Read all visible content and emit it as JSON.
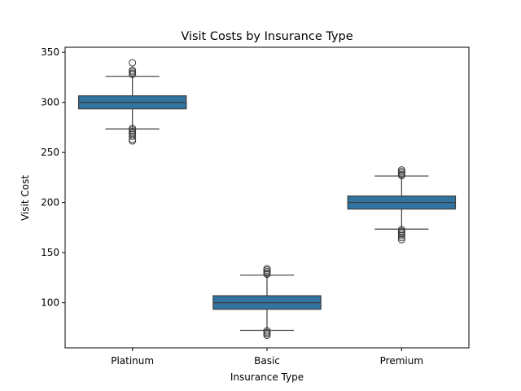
{
  "chart_data": {
    "type": "box",
    "title": "Visit Costs by Insurance Type",
    "xlabel": "Insurance Type",
    "ylabel": "Visit Cost",
    "ylim": [
      55,
      355
    ],
    "yticks": [
      100,
      150,
      200,
      250,
      300,
      350
    ],
    "grid": false,
    "colors": {
      "box": "#3274a1",
      "line": "#3d3d3d",
      "axis": "#000000"
    },
    "categories": [
      "Platinum",
      "Basic",
      "Premium"
    ],
    "boxes": [
      {
        "category": "Platinum",
        "q1": 293.5,
        "median": 300,
        "q3": 306.5,
        "whisker_low": 273.5,
        "whisker_high": 326,
        "outliers": [
          339.5,
          332,
          330.5,
          329,
          328,
          274,
          272.5,
          271,
          269.5,
          268,
          266,
          263,
          261.5
        ]
      },
      {
        "category": "Basic",
        "q1": 93.5,
        "median": 100,
        "q3": 107,
        "whisker_low": 72.5,
        "whisker_high": 127.5,
        "outliers": [
          134,
          132.5,
          131,
          129.5,
          128.5,
          72,
          70.5,
          69,
          67.5
        ]
      },
      {
        "category": "Premium",
        "q1": 193.5,
        "median": 200,
        "q3": 206.5,
        "whisker_low": 173.5,
        "whisker_high": 226.5,
        "outliers": [
          232.5,
          231,
          229.5,
          228,
          227,
          173,
          171.5,
          170,
          168.5,
          167,
          165,
          163
        ]
      }
    ]
  }
}
